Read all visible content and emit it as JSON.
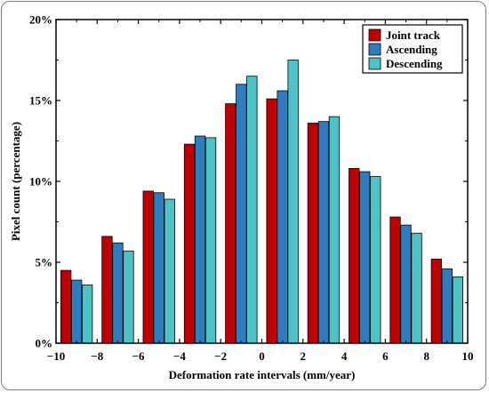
{
  "chart_data": {
    "type": "bar",
    "title": "",
    "xlabel": "Deformation rate intervals (mm/year)",
    "ylabel": "Pixel count (percentage)",
    "xlim": [
      -10,
      10
    ],
    "ylim": [
      0,
      20
    ],
    "bin_edges": [
      -10,
      -8,
      -6,
      -4,
      -2,
      0,
      2,
      4,
      6,
      8,
      10
    ],
    "x_ticks": [
      "−10",
      "−8",
      "−6",
      "−4",
      "−2",
      "0",
      "2",
      "4",
      "6",
      "8",
      "10"
    ],
    "y_ticks": [
      "0%",
      "5%",
      "10%",
      "15%",
      "20%"
    ],
    "y_tick_values": [
      0,
      5,
      10,
      15,
      20
    ],
    "legend_position": "top-right",
    "series": [
      {
        "name": "Joint track",
        "color": "#c00000",
        "values": [
          4.5,
          6.6,
          9.4,
          12.3,
          14.8,
          15.1,
          13.6,
          10.8,
          7.8,
          5.2
        ]
      },
      {
        "name": "Ascending",
        "color": "#2e7ebf",
        "values": [
          3.9,
          6.2,
          9.3,
          12.8,
          16.0,
          15.6,
          13.7,
          10.6,
          7.3,
          4.6
        ]
      },
      {
        "name": "Descending",
        "color": "#4ec3c6",
        "values": [
          3.6,
          5.7,
          8.9,
          12.7,
          16.5,
          17.5,
          14.0,
          10.3,
          6.8,
          4.1
        ]
      }
    ]
  }
}
